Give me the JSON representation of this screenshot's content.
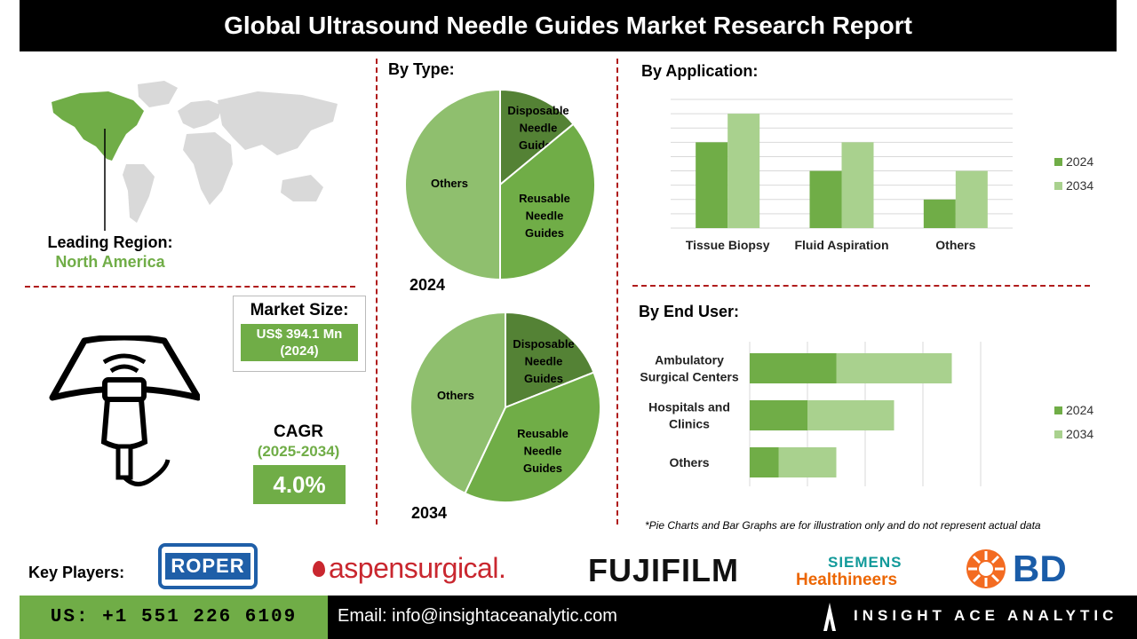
{
  "header": {
    "title": "Global Ultrasound Needle Guides Market Research Report"
  },
  "region": {
    "label": "Leading Region:",
    "value": "North America"
  },
  "market_size": {
    "label": "Market Size:",
    "value_line1": "US$ 394.1 Mn",
    "value_line2": "(2024)"
  },
  "cagr": {
    "label": "CAGR",
    "period": "(2025-2034)",
    "value": "4.0%"
  },
  "sections": {
    "by_type": "By Type:",
    "by_application": "By  Application:",
    "by_end_user": "By End User:"
  },
  "disclaimer": "*Pie Charts and Bar Graphs are for illustration only and do not represent actual data",
  "key_players": {
    "label": "Key Players:",
    "logos": [
      "ROPER",
      "aspensurgical.",
      "FUJIFILM",
      "SIEMENS",
      "Healthineers",
      "BD"
    ]
  },
  "footer": {
    "phone": "US: +1 551 226 6109",
    "email": "Email: info@insightaceanalytic.com",
    "brand": "INSIGHT ACE ANALYTIC"
  },
  "colors": {
    "dark_green": "#548235",
    "mid_green": "#70ad47",
    "light_green": "#a9d18e",
    "light_green2": "#8fbf6e",
    "dash_red": "#b01c1c"
  },
  "chart_data": [
    {
      "type": "pie",
      "title": "2024",
      "slices": [
        {
          "label_lines": [
            "Disposable",
            "Needle",
            "Guides"
          ],
          "value": 14
        },
        {
          "label_lines": [
            "Reusable",
            "Needle",
            "Guides"
          ],
          "value": 36
        },
        {
          "label_lines": [
            "Others"
          ],
          "value": 50
        }
      ]
    },
    {
      "type": "pie",
      "title": "2034",
      "slices": [
        {
          "label_lines": [
            "Disposable",
            "Needle",
            "Guides"
          ],
          "value": 19
        },
        {
          "label_lines": [
            "Reusable",
            "Needle",
            "Guides"
          ],
          "value": 38
        },
        {
          "label_lines": [
            "Others"
          ],
          "value": 43
        }
      ]
    },
    {
      "type": "bar",
      "orientation": "vertical",
      "categories": [
        "Tissue Biopsy",
        "Fluid Aspiration",
        "Others"
      ],
      "series": [
        {
          "name": "2024",
          "values": [
            6,
            4,
            2
          ]
        },
        {
          "name": "2034",
          "values": [
            8,
            6,
            4
          ]
        }
      ],
      "ylim": [
        0,
        9
      ],
      "grid": true,
      "legend": "right"
    },
    {
      "type": "bar",
      "orientation": "horizontal",
      "stacked": true,
      "categories": [
        [
          "Ambulatory",
          "Surgical Centers"
        ],
        [
          "Hospitals and",
          "Clinics"
        ],
        [
          "Others"
        ]
      ],
      "series": [
        {
          "name": "2024",
          "values": [
            3,
            2,
            1
          ]
        },
        {
          "name": "2034",
          "values": [
            4,
            3,
            2
          ]
        }
      ],
      "xlim": [
        0,
        8
      ],
      "grid": true,
      "legend": "right"
    }
  ]
}
